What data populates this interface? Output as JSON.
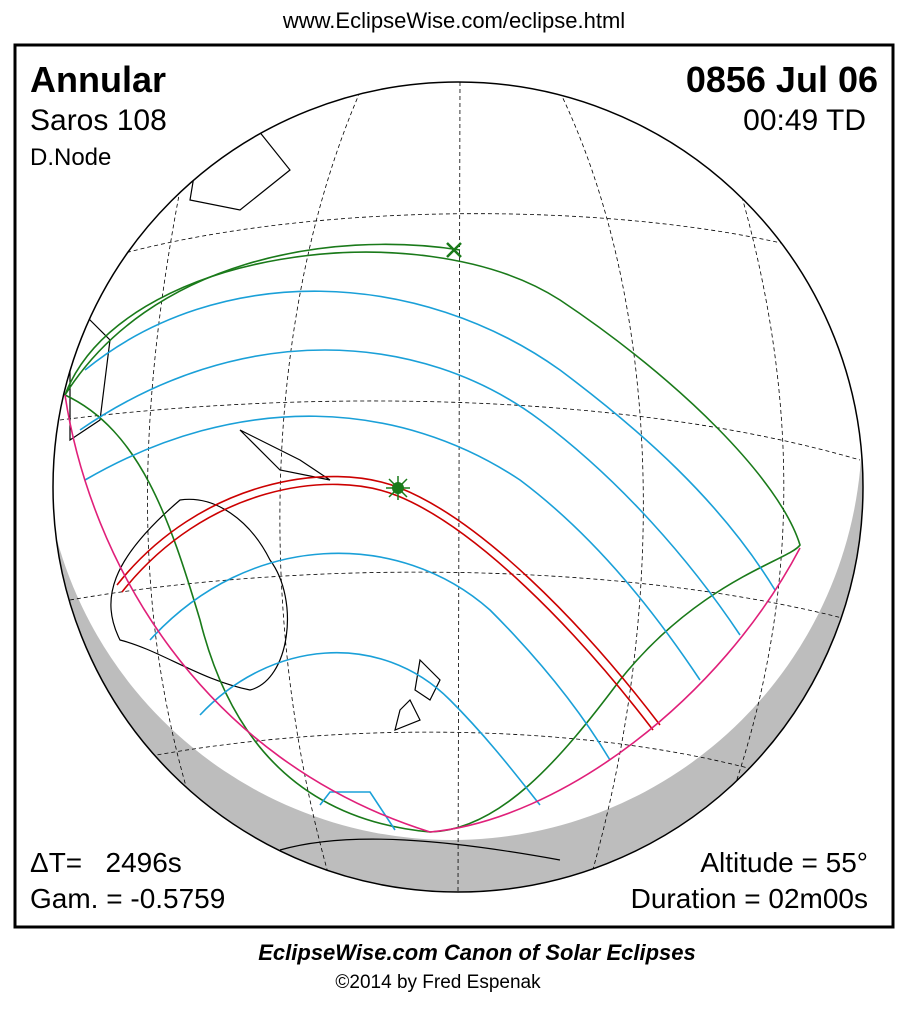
{
  "header": {
    "url": "www.EclipseWise.com/eclipse.html"
  },
  "panel": {
    "top_left": {
      "eclipse_type": "Annular",
      "saros": "Saros 108",
      "node": "D.Node"
    },
    "top_right": {
      "date": "0856 Jul 06",
      "time": "00:49 TD"
    },
    "bottom_left": {
      "delta_t": "ΔT=   2496s",
      "gamma": "Gam. = -0.5759"
    },
    "bottom_right": {
      "altitude": "Altitude = 55°",
      "duration": "Duration = 02m00s"
    }
  },
  "footer": {
    "title": "EclipseWise.com Canon of Solar Eclipses",
    "credit": "©2014 by Fred Espenak"
  }
}
